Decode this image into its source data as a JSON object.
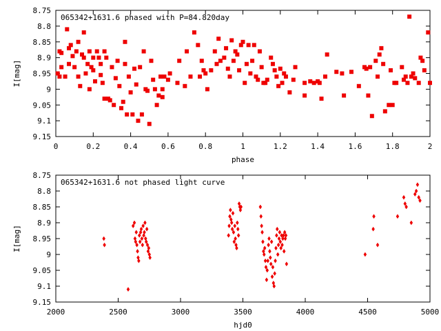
{
  "chart_data": [
    {
      "type": "scatter",
      "title": "065342+1631.6 phased with P=84.820day",
      "xlabel": "phase",
      "ylabel": "I[mag]",
      "xlim": [
        0,
        2
      ],
      "ylim": [
        9.15,
        8.75
      ],
      "y_inverted": true,
      "x_ticks": [
        "0",
        "0.2",
        "0.4",
        "0.6",
        "0.8",
        "1",
        "1.2",
        "1.4",
        "1.6",
        "1.8",
        "2"
      ],
      "y_ticks": [
        "8.75",
        "8.8",
        "8.85",
        "8.9",
        "8.95",
        "9",
        "9.05",
        "9.1",
        "9.15"
      ],
      "marker_color": "#ee0000",
      "grid": false,
      "points": [
        [
          0.01,
          8.95
        ],
        [
          0.02,
          8.96
        ],
        [
          0.02,
          8.88
        ],
        [
          0.03,
          8.885
        ],
        [
          0.03,
          8.93
        ],
        [
          0.05,
          8.96
        ],
        [
          0.06,
          8.81
        ],
        [
          0.07,
          8.87
        ],
        [
          0.07,
          8.92
        ],
        [
          0.08,
          8.86
        ],
        [
          0.09,
          8.895
        ],
        [
          0.1,
          8.93
        ],
        [
          0.11,
          8.88
        ],
        [
          0.12,
          8.85
        ],
        [
          0.12,
          8.96
        ],
        [
          0.13,
          8.99
        ],
        [
          0.14,
          8.89
        ],
        [
          0.15,
          8.82
        ],
        [
          0.15,
          8.9
        ],
        [
          0.16,
          8.95
        ],
        [
          0.17,
          8.92
        ],
        [
          0.18,
          8.88
        ],
        [
          0.18,
          9.0
        ],
        [
          0.19,
          8.93
        ],
        [
          0.2,
          8.94
        ],
        [
          0.2,
          8.9
        ],
        [
          0.21,
          8.975
        ],
        [
          0.22,
          8.88
        ],
        [
          0.23,
          8.9
        ],
        [
          0.24,
          8.955
        ],
        [
          0.24,
          8.92
        ],
        [
          0.25,
          8.98
        ],
        [
          0.26,
          9.03
        ],
        [
          0.26,
          8.88
        ],
        [
          0.27,
          8.9
        ],
        [
          0.28,
          9.03
        ],
        [
          0.29,
          9.035
        ],
        [
          0.3,
          8.93
        ],
        [
          0.31,
          9.05
        ],
        [
          0.32,
          8.965
        ],
        [
          0.33,
          8.91
        ],
        [
          0.34,
          8.99
        ],
        [
          0.35,
          9.06
        ],
        [
          0.36,
          9.04
        ],
        [
          0.37,
          8.85
        ],
        [
          0.37,
          8.92
        ],
        [
          0.38,
          9.08
        ],
        [
          0.39,
          8.96
        ],
        [
          0.4,
          9.01
        ],
        [
          0.41,
          9.08
        ],
        [
          0.42,
          8.935
        ],
        [
          0.43,
          8.985
        ],
        [
          0.44,
          9.1
        ],
        [
          0.45,
          8.93
        ],
        [
          0.46,
          9.08
        ],
        [
          0.47,
          8.88
        ],
        [
          0.48,
          9.0
        ],
        [
          0.49,
          9.005
        ],
        [
          0.5,
          9.11
        ],
        [
          0.51,
          8.91
        ],
        [
          0.52,
          8.97
        ],
        [
          0.53,
          9.0
        ],
        [
          0.54,
          9.05
        ],
        [
          0.55,
          9.02
        ],
        [
          0.56,
          8.96
        ],
        [
          0.57,
          9.0
        ],
        [
          0.57,
          9.025
        ],
        [
          0.58,
          8.96
        ],
        [
          0.6,
          8.97
        ],
        [
          0.61,
          8.95
        ],
        [
          0.65,
          8.98
        ],
        [
          0.66,
          8.91
        ],
        [
          0.69,
          8.99
        ],
        [
          0.7,
          8.88
        ],
        [
          0.72,
          8.96
        ],
        [
          0.74,
          8.82
        ],
        [
          0.76,
          8.86
        ],
        [
          0.77,
          8.96
        ],
        [
          0.78,
          8.91
        ],
        [
          0.79,
          8.94
        ],
        [
          0.8,
          8.95
        ],
        [
          0.81,
          9.0
        ],
        [
          0.83,
          8.94
        ],
        [
          0.85,
          8.88
        ],
        [
          0.86,
          8.92
        ],
        [
          0.87,
          8.84
        ],
        [
          0.88,
          8.91
        ],
        [
          0.9,
          8.9
        ],
        [
          0.91,
          8.87
        ],
        [
          0.92,
          8.935
        ],
        [
          0.93,
          8.96
        ],
        [
          0.94,
          8.845
        ],
        [
          0.95,
          8.91
        ],
        [
          0.96,
          8.88
        ],
        [
          0.97,
          8.89
        ],
        [
          0.98,
          8.94
        ],
        [
          0.99,
          8.86
        ],
        [
          1.0,
          8.85
        ],
        [
          1.01,
          8.98
        ],
        [
          1.02,
          8.92
        ],
        [
          1.03,
          8.86
        ],
        [
          1.04,
          8.95
        ],
        [
          1.05,
          8.91
        ],
        [
          1.06,
          8.86
        ],
        [
          1.07,
          8.96
        ],
        [
          1.08,
          8.97
        ],
        [
          1.09,
          8.88
        ],
        [
          1.1,
          8.93
        ],
        [
          1.11,
          8.98
        ],
        [
          1.12,
          8.98
        ],
        [
          1.13,
          8.97
        ],
        [
          1.15,
          8.9
        ],
        [
          1.16,
          8.92
        ],
        [
          1.17,
          8.94
        ],
        [
          1.18,
          8.96
        ],
        [
          1.19,
          8.99
        ],
        [
          1.2,
          8.935
        ],
        [
          1.21,
          8.98
        ],
        [
          1.22,
          8.95
        ],
        [
          1.23,
          8.96
        ],
        [
          1.25,
          9.01
        ],
        [
          1.27,
          8.97
        ],
        [
          1.28,
          8.93
        ],
        [
          1.33,
          9.02
        ],
        [
          1.33,
          8.98
        ],
        [
          1.36,
          8.975
        ],
        [
          1.38,
          8.98
        ],
        [
          1.4,
          8.975
        ],
        [
          1.41,
          8.98
        ],
        [
          1.42,
          9.03
        ],
        [
          1.44,
          8.96
        ],
        [
          1.45,
          8.89
        ],
        [
          1.5,
          8.945
        ],
        [
          1.53,
          8.95
        ],
        [
          1.54,
          9.02
        ],
        [
          1.58,
          8.945
        ],
        [
          1.62,
          8.99
        ],
        [
          1.65,
          8.93
        ],
        [
          1.66,
          8.935
        ],
        [
          1.67,
          9.02
        ],
        [
          1.68,
          8.93
        ],
        [
          1.69,
          9.085
        ],
        [
          1.71,
          8.91
        ],
        [
          1.72,
          8.96
        ],
        [
          1.73,
          8.89
        ],
        [
          1.74,
          8.87
        ],
        [
          1.75,
          8.92
        ],
        [
          1.76,
          9.07
        ],
        [
          1.78,
          9.05
        ],
        [
          1.79,
          8.94
        ],
        [
          1.8,
          9.05
        ],
        [
          1.81,
          8.98
        ],
        [
          1.82,
          8.98
        ],
        [
          1.85,
          8.93
        ],
        [
          1.86,
          8.97
        ],
        [
          1.87,
          8.96
        ],
        [
          1.88,
          8.98
        ],
        [
          1.89,
          8.77
        ],
        [
          1.9,
          8.96
        ],
        [
          1.91,
          8.95
        ],
        [
          1.92,
          8.965
        ],
        [
          1.94,
          8.98
        ],
        [
          1.95,
          8.9
        ],
        [
          1.96,
          8.91
        ],
        [
          1.97,
          8.94
        ],
        [
          1.99,
          8.82
        ],
        [
          2.0,
          8.98
        ]
      ]
    },
    {
      "type": "scatter",
      "title": "065342+1631.6 not phased light curve",
      "xlabel": "hjd0",
      "ylabel": "I[mag]",
      "xlim": [
        2000,
        5000
      ],
      "ylim": [
        9.15,
        8.75
      ],
      "y_inverted": true,
      "x_ticks": [
        "2000",
        "2500",
        "3000",
        "3500",
        "4000",
        "4500",
        "5000"
      ],
      "y_ticks": [
        "8.75",
        "8.8",
        "8.85",
        "8.9",
        "8.95",
        "9",
        "9.05",
        "9.1",
        "9.15"
      ],
      "marker_color": "#ee0000",
      "grid": false,
      "points": [
        [
          2385,
          8.95
        ],
        [
          2390,
          8.97
        ],
        [
          2580,
          9.11
        ],
        [
          2620,
          8.91
        ],
        [
          2630,
          8.9
        ],
        [
          2635,
          8.95
        ],
        [
          2640,
          8.96
        ],
        [
          2645,
          8.93
        ],
        [
          2650,
          8.97
        ],
        [
          2655,
          8.99
        ],
        [
          2660,
          9.01
        ],
        [
          2665,
          9.02
        ],
        [
          2670,
          8.94
        ],
        [
          2675,
          8.96
        ],
        [
          2680,
          8.93
        ],
        [
          2685,
          8.92
        ],
        [
          2690,
          8.95
        ],
        [
          2695,
          8.97
        ],
        [
          2700,
          8.91
        ],
        [
          2705,
          8.94
        ],
        [
          2710,
          8.93
        ],
        [
          2715,
          8.9
        ],
        [
          2720,
          8.95
        ],
        [
          2725,
          8.96
        ],
        [
          2730,
          8.92
        ],
        [
          2735,
          8.97
        ],
        [
          2740,
          8.99
        ],
        [
          2745,
          8.98
        ],
        [
          2750,
          9.0
        ],
        [
          2755,
          9.01
        ],
        [
          3385,
          8.94
        ],
        [
          3390,
          8.91
        ],
        [
          3395,
          8.88
        ],
        [
          3400,
          8.86
        ],
        [
          3405,
          8.89
        ],
        [
          3410,
          8.9
        ],
        [
          3415,
          8.92
        ],
        [
          3420,
          8.87
        ],
        [
          3425,
          8.93
        ],
        [
          3430,
          8.96
        ],
        [
          3435,
          8.91
        ],
        [
          3440,
          8.95
        ],
        [
          3445,
          8.97
        ],
        [
          3450,
          8.98
        ],
        [
          3455,
          8.9
        ],
        [
          3460,
          8.92
        ],
        [
          3465,
          8.94
        ],
        [
          3470,
          8.84
        ],
        [
          3475,
          8.85
        ],
        [
          3480,
          8.86
        ],
        [
          3485,
          8.85
        ],
        [
          3640,
          8.85
        ],
        [
          3645,
          8.88
        ],
        [
          3650,
          8.91
        ],
        [
          3655,
          8.93
        ],
        [
          3660,
          8.96
        ],
        [
          3665,
          8.99
        ],
        [
          3670,
          9.0
        ],
        [
          3675,
          8.98
        ],
        [
          3680,
          9.02
        ],
        [
          3685,
          9.04
        ],
        [
          3690,
          9.08
        ],
        [
          3695,
          9.05
        ],
        [
          3700,
          9.02
        ],
        [
          3705,
          8.97
        ],
        [
          3710,
          8.95
        ],
        [
          3715,
          8.99
        ],
        [
          3720,
          9.01
        ],
        [
          3725,
          9.03
        ],
        [
          3730,
          8.96
        ],
        [
          3735,
          9.07
        ],
        [
          3740,
          9.04
        ],
        [
          3745,
          9.09
        ],
        [
          3750,
          9.1
        ],
        [
          3755,
          9.06
        ],
        [
          3760,
          9.02
        ],
        [
          3765,
          8.98
        ],
        [
          3770,
          8.94
        ],
        [
          3775,
          8.92
        ],
        [
          3780,
          9.0
        ],
        [
          3785,
          8.97
        ],
        [
          3790,
          8.95
        ],
        [
          3795,
          8.93
        ],
        [
          3800,
          8.96
        ],
        [
          3805,
          8.98
        ],
        [
          3810,
          8.94
        ],
        [
          3815,
          8.97
        ],
        [
          3820,
          8.95
        ],
        [
          3825,
          8.94
        ],
        [
          3830,
          8.99
        ],
        [
          3835,
          8.93
        ],
        [
          3840,
          8.95
        ],
        [
          3845,
          8.94
        ],
        [
          3850,
          9.03
        ],
        [
          4480,
          9.0
        ],
        [
          4545,
          8.92
        ],
        [
          4550,
          8.88
        ],
        [
          4580,
          8.97
        ],
        [
          4740,
          8.88
        ],
        [
          4790,
          8.82
        ],
        [
          4800,
          8.84
        ],
        [
          4810,
          8.85
        ],
        [
          4850,
          8.9
        ],
        [
          4880,
          8.81
        ],
        [
          4890,
          8.8
        ],
        [
          4900,
          8.78
        ],
        [
          4910,
          8.82
        ],
        [
          4920,
          8.83
        ]
      ]
    }
  ]
}
